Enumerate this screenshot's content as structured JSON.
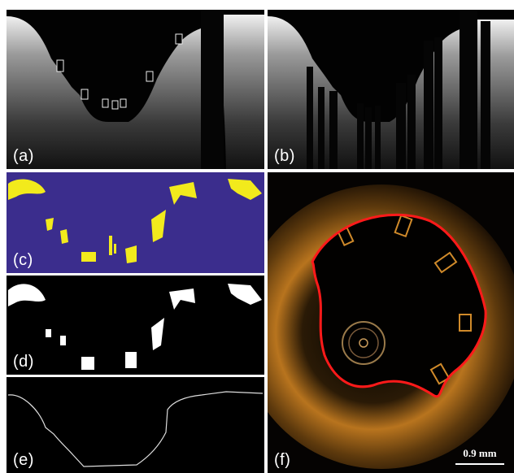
{
  "figure": {
    "panels": [
      {
        "id": "a",
        "label": "(a)"
      },
      {
        "id": "b",
        "label": "(b)"
      },
      {
        "id": "c",
        "label": "(c)"
      },
      {
        "id": "d",
        "label": "(d)"
      },
      {
        "id": "e",
        "label": "(e)"
      },
      {
        "id": "f",
        "label": "(f)"
      }
    ],
    "scale_bar": {
      "text": "0.9 mm"
    },
    "colors": {
      "oct_tissue": "#d9d9d9",
      "mask_background": "#3b2d8d",
      "mask_foreground": "#f2ea1c",
      "binary_foreground": "#ffffff",
      "boundary_contour": "#ff1a1a",
      "polar_tissue": "#b8741e"
    }
  }
}
